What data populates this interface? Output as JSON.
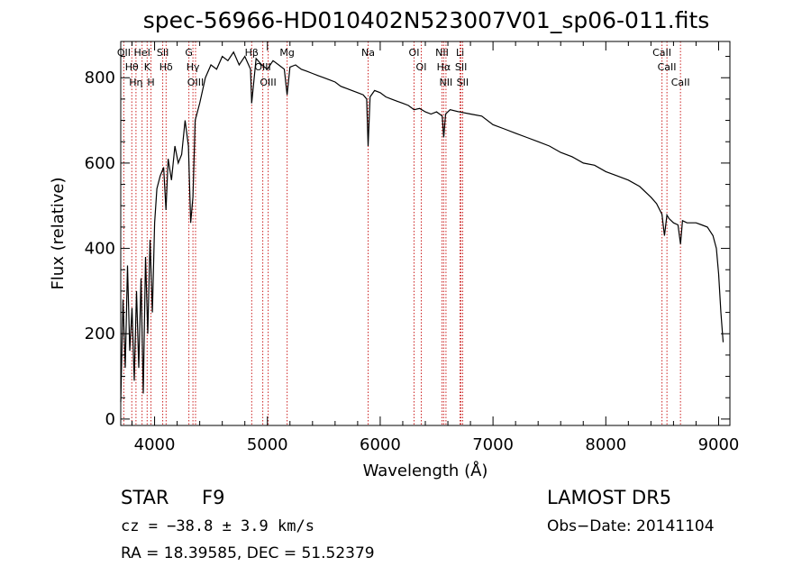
{
  "header": {
    "title": "spec-56966-HD010402N523007V01_sp06-011.fits"
  },
  "footer": {
    "object_class": "STAR",
    "subclass": "F9",
    "survey": "LAMOST DR5",
    "redshift_text": "cz = −38.8 ± 3.9 km/s",
    "obs_date_text": "Obs−Date: 20141104",
    "coords_text": "RA =  18.39585, DEC =  51.52379"
  },
  "chart_data": {
    "type": "line",
    "title": "spec-56966-HD010402N523007V01_sp06-011.fits",
    "xlabel": "Wavelength (Å)",
    "ylabel": "Flux (relative)",
    "xlim": [
      3700,
      9100
    ],
    "ylim": [
      -15,
      885
    ],
    "xticks": [
      4000,
      5000,
      6000,
      7000,
      8000,
      9000
    ],
    "yticks": [
      0,
      200,
      400,
      600,
      800
    ],
    "grid": false,
    "series": [
      {
        "color": "#000000",
        "x": [
          3700,
          3720,
          3740,
          3760,
          3780,
          3800,
          3820,
          3840,
          3860,
          3880,
          3900,
          3920,
          3940,
          3960,
          3980,
          4000,
          4020,
          4050,
          4080,
          4101,
          4120,
          4150,
          4180,
          4210,
          4240,
          4270,
          4300,
          4320,
          4340,
          4360,
          4400,
          4450,
          4500,
          4550,
          4600,
          4650,
          4700,
          4750,
          4800,
          4850,
          4861,
          4900,
          4950,
          5000,
          5050,
          5100,
          5150,
          5175,
          5200,
          5250,
          5300,
          5350,
          5400,
          5450,
          5500,
          5550,
          5600,
          5650,
          5700,
          5750,
          5800,
          5850,
          5880,
          5893,
          5910,
          5950,
          6000,
          6050,
          6100,
          6150,
          6200,
          6250,
          6300,
          6350,
          6400,
          6450,
          6500,
          6550,
          6563,
          6580,
          6620,
          6700,
          6800,
          6900,
          7000,
          7100,
          7200,
          7300,
          7400,
          7500,
          7600,
          7700,
          7800,
          7900,
          8000,
          8100,
          8200,
          8300,
          8400,
          8450,
          8498,
          8520,
          8542,
          8560,
          8600,
          8640,
          8662,
          8680,
          8720,
          8800,
          8850,
          8900,
          8950,
          8980,
          9000,
          9020,
          9040
        ],
        "y": [
          40,
          280,
          120,
          360,
          160,
          260,
          90,
          300,
          120,
          330,
          60,
          380,
          200,
          420,
          250,
          460,
          540,
          570,
          590,
          490,
          610,
          560,
          640,
          600,
          620,
          700,
          640,
          460,
          520,
          700,
          740,
          800,
          830,
          820,
          850,
          840,
          860,
          830,
          850,
          820,
          740,
          845,
          830,
          820,
          840,
          830,
          820,
          760,
          825,
          830,
          820,
          815,
          810,
          805,
          800,
          795,
          790,
          780,
          775,
          770,
          765,
          760,
          750,
          640,
          755,
          770,
          765,
          755,
          750,
          745,
          740,
          735,
          725,
          728,
          720,
          715,
          720,
          710,
          660,
          715,
          725,
          720,
          715,
          710,
          690,
          680,
          670,
          660,
          650,
          640,
          625,
          615,
          600,
          595,
          580,
          570,
          560,
          545,
          520,
          505,
          480,
          430,
          478,
          470,
          460,
          455,
          410,
          465,
          460,
          460,
          455,
          450,
          430,
          400,
          340,
          250,
          180
        ]
      }
    ],
    "line_annotations": [
      {
        "wavelength": 3727,
        "label": "OII"
      },
      {
        "wavelength": 3798,
        "label": "Hθ"
      },
      {
        "wavelength": 3835,
        "label": "Hη"
      },
      {
        "wavelength": 3889,
        "label": "HeI"
      },
      {
        "wavelength": 3934,
        "label": "K"
      },
      {
        "wavelength": 3968,
        "label": "H"
      },
      {
        "wavelength": 4072,
        "label": "SII"
      },
      {
        "wavelength": 4102,
        "label": "Hδ"
      },
      {
        "wavelength": 4304,
        "label": "G"
      },
      {
        "wavelength": 4340,
        "label": "Hγ"
      },
      {
        "wavelength": 4363,
        "label": "OIII"
      },
      {
        "wavelength": 4861,
        "label": "Hβ"
      },
      {
        "wavelength": 4959,
        "label": "OIII"
      },
      {
        "wavelength": 5007,
        "label": "OIII"
      },
      {
        "wavelength": 5175,
        "label": "Mg"
      },
      {
        "wavelength": 5893,
        "label": "Na"
      },
      {
        "wavelength": 6300,
        "label": "OI"
      },
      {
        "wavelength": 6364,
        "label": "OI"
      },
      {
        "wavelength": 6548,
        "label": "NII"
      },
      {
        "wavelength": 6563,
        "label": "Hα"
      },
      {
        "wavelength": 6583,
        "label": "NII"
      },
      {
        "wavelength": 6708,
        "label": "Li"
      },
      {
        "wavelength": 6716,
        "label": "SII"
      },
      {
        "wavelength": 6731,
        "label": "SII"
      },
      {
        "wavelength": 8498,
        "label": "CaII"
      },
      {
        "wavelength": 8542,
        "label": "CaII"
      },
      {
        "wavelength": 8662,
        "label": "CaII"
      }
    ]
  }
}
